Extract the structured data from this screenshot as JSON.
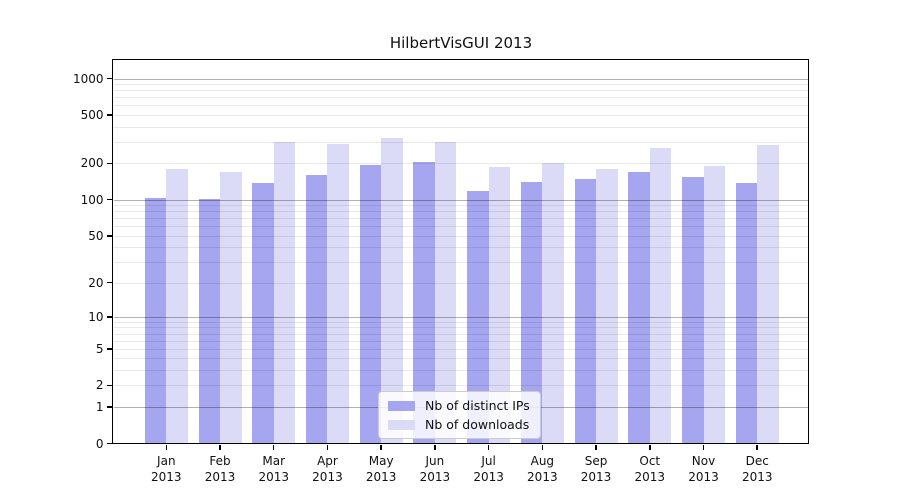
{
  "chart_data": {
    "type": "bar",
    "title": "HilbertVisGUI 2013",
    "scale": "log1p",
    "xlabel": "",
    "ylabel": "",
    "categories": [
      "Jan",
      "Feb",
      "Mar",
      "Apr",
      "May",
      "Jun",
      "Jul",
      "Aug",
      "Sep",
      "Oct",
      "Nov",
      "Dec"
    ],
    "year": "2013",
    "series": [
      {
        "name": "Nb of distinct IPs",
        "color": "#a5a5f0",
        "values": [
          104,
          102,
          137,
          161,
          193,
          206,
          119,
          139,
          147,
          169,
          153,
          137
        ]
      },
      {
        "name": "Nb of downloads",
        "color": "#dbdbf8",
        "values": [
          179,
          171,
          300,
          289,
          324,
          300,
          185,
          203,
          181,
          268,
          189,
          282
        ]
      }
    ],
    "yticks": [
      1000,
      500,
      200,
      100,
      50,
      20,
      10,
      5,
      2,
      1,
      0
    ],
    "major_gridlines": [
      1,
      10,
      100,
      1000
    ],
    "ylim": [
      0,
      1420
    ],
    "grid": true,
    "legend_position": "bottom-center",
    "background": "#ffffff",
    "spine_color": "#000000"
  }
}
